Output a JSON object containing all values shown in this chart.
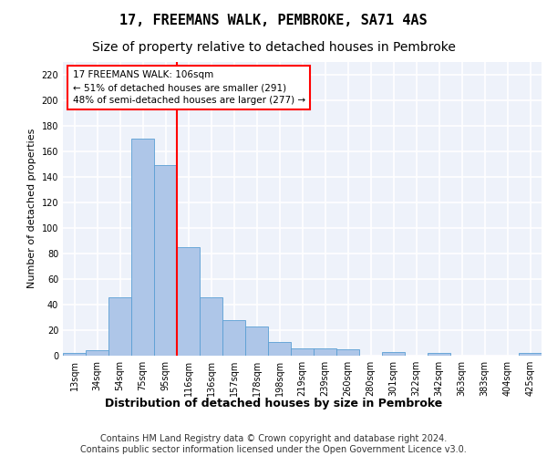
{
  "title": "17, FREEMANS WALK, PEMBROKE, SA71 4AS",
  "subtitle": "Size of property relative to detached houses in Pembroke",
  "xlabel": "Distribution of detached houses by size in Pembroke",
  "ylabel": "Number of detached properties",
  "categories": [
    "13sqm",
    "34sqm",
    "54sqm",
    "75sqm",
    "95sqm",
    "116sqm",
    "136sqm",
    "157sqm",
    "178sqm",
    "198sqm",
    "219sqm",
    "239sqm",
    "260sqm",
    "280sqm",
    "301sqm",
    "322sqm",
    "342sqm",
    "363sqm",
    "383sqm",
    "404sqm",
    "425sqm"
  ],
  "values": [
    2,
    4,
    46,
    170,
    149,
    85,
    46,
    28,
    23,
    11,
    6,
    6,
    5,
    0,
    3,
    0,
    2,
    0,
    0,
    0,
    2
  ],
  "bar_color": "#aec6e8",
  "bar_edge_color": "#5a9fd4",
  "vline_x_index": 5,
  "vline_color": "red",
  "annotation_text": "17 FREEMANS WALK: 106sqm\n← 51% of detached houses are smaller (291)\n48% of semi-detached houses are larger (277) →",
  "annotation_box_color": "white",
  "annotation_box_edge_color": "red",
  "ylim": [
    0,
    230
  ],
  "yticks": [
    0,
    20,
    40,
    60,
    80,
    100,
    120,
    140,
    160,
    180,
    200,
    220
  ],
  "footer": "Contains HM Land Registry data © Crown copyright and database right 2024.\nContains public sector information licensed under the Open Government Licence v3.0.",
  "bg_color": "#eef2fa",
  "grid_color": "#ffffff",
  "title_fontsize": 11,
  "subtitle_fontsize": 10,
  "xlabel_fontsize": 9,
  "ylabel_fontsize": 8,
  "tick_fontsize": 7,
  "footer_fontsize": 7
}
